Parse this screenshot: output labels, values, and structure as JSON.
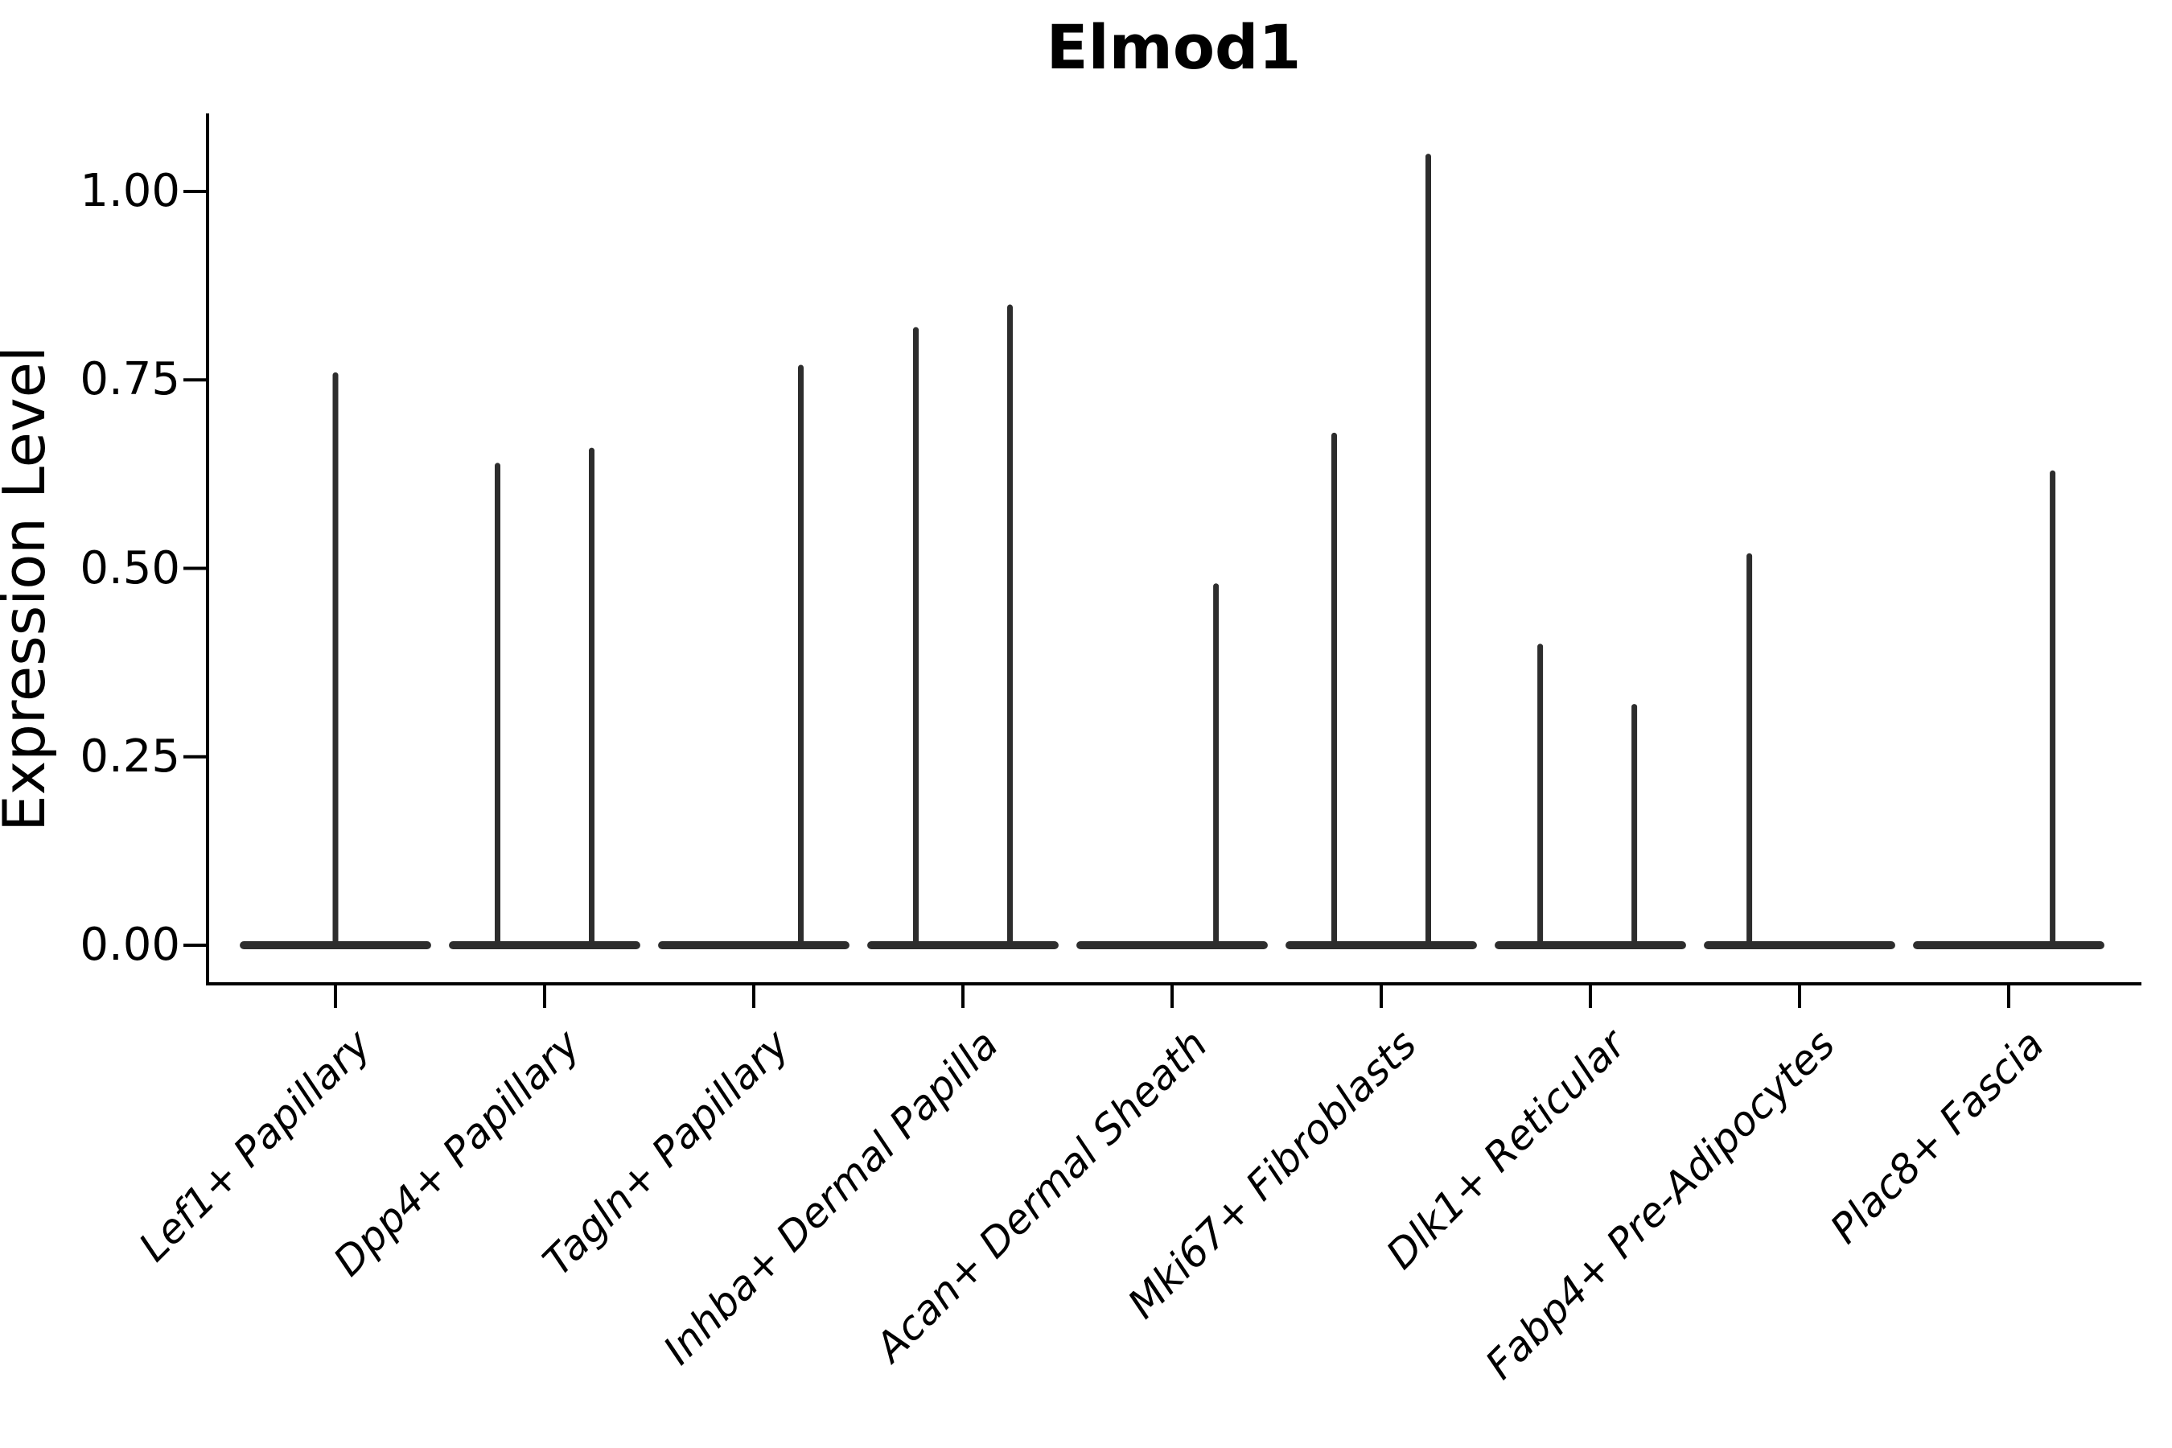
{
  "title": "Elmod1",
  "axes": {
    "y_label": "Expression Level",
    "y_tick_labels": [
      "0.00",
      "0.25",
      "0.50",
      "0.75",
      "1.00"
    ],
    "y_tick_values": [
      0.0,
      0.25,
      0.5,
      0.75,
      1.0
    ]
  },
  "chart_data": {
    "type": "violin",
    "title": "Elmod1",
    "xlabel": "",
    "ylabel": "Expression Level",
    "ylim": [
      -0.05,
      1.1
    ],
    "y_ticks": [
      0.0,
      0.25,
      0.5,
      0.75,
      1.0
    ],
    "grid": false,
    "legend": "none",
    "categories": [
      "Lef1+ Papillary",
      "Dpp4+ Papillary",
      "Tagln+ Papillary",
      "Inhba+ Dermal Papilla",
      "Acan+ Dermal Sheath",
      "Mki67+ Fibroblasts",
      "Dlk1+ Reticular",
      "Fabp4+ Pre-Adipocytes",
      "Plac8+ Fascia"
    ],
    "description": "Collapsed violin plot: every category shows a wide flat density bar at expression 0 with narrow vertical spikes rising to the maximum expression of rare positive cells.",
    "base_value": 0.0,
    "base_width_fraction": 0.915,
    "violins": [
      {
        "category": "Lef1+ Papillary",
        "spikes": [
          {
            "offset_frac": 0.0,
            "max": 0.76
          }
        ]
      },
      {
        "category": "Dpp4+ Papillary",
        "spikes": [
          {
            "offset_frac": -0.225,
            "max": 0.64
          },
          {
            "offset_frac": 0.225,
            "max": 0.66
          }
        ]
      },
      {
        "category": "Tagln+ Papillary",
        "spikes": [
          {
            "offset_frac": 0.225,
            "max": 0.77
          }
        ]
      },
      {
        "category": "Inhba+ Dermal Papilla",
        "spikes": [
          {
            "offset_frac": -0.225,
            "max": 0.82
          },
          {
            "offset_frac": 0.225,
            "max": 0.85
          }
        ]
      },
      {
        "category": "Acan+ Dermal Sheath",
        "spikes": [
          {
            "offset_frac": 0.21,
            "max": 0.48
          }
        ]
      },
      {
        "category": "Mki67+ Fibroblasts",
        "spikes": [
          {
            "offset_frac": -0.225,
            "max": 0.68
          },
          {
            "offset_frac": 0.225,
            "max": 1.05
          }
        ]
      },
      {
        "category": "Dlk1+ Reticular",
        "spikes": [
          {
            "offset_frac": -0.24,
            "max": 0.4
          },
          {
            "offset_frac": 0.21,
            "max": 0.32
          }
        ]
      },
      {
        "category": "Fabp4+ Pre-Adipocytes",
        "spikes": [
          {
            "offset_frac": -0.24,
            "max": 0.52
          }
        ]
      },
      {
        "category": "Plac8+ Fascia",
        "spikes": [
          {
            "offset_frac": 0.21,
            "max": 0.63
          }
        ]
      }
    ],
    "colors": {
      "violin": "#2d2d2d",
      "axis": "#000000",
      "text": "#000000",
      "background": "#ffffff"
    }
  }
}
